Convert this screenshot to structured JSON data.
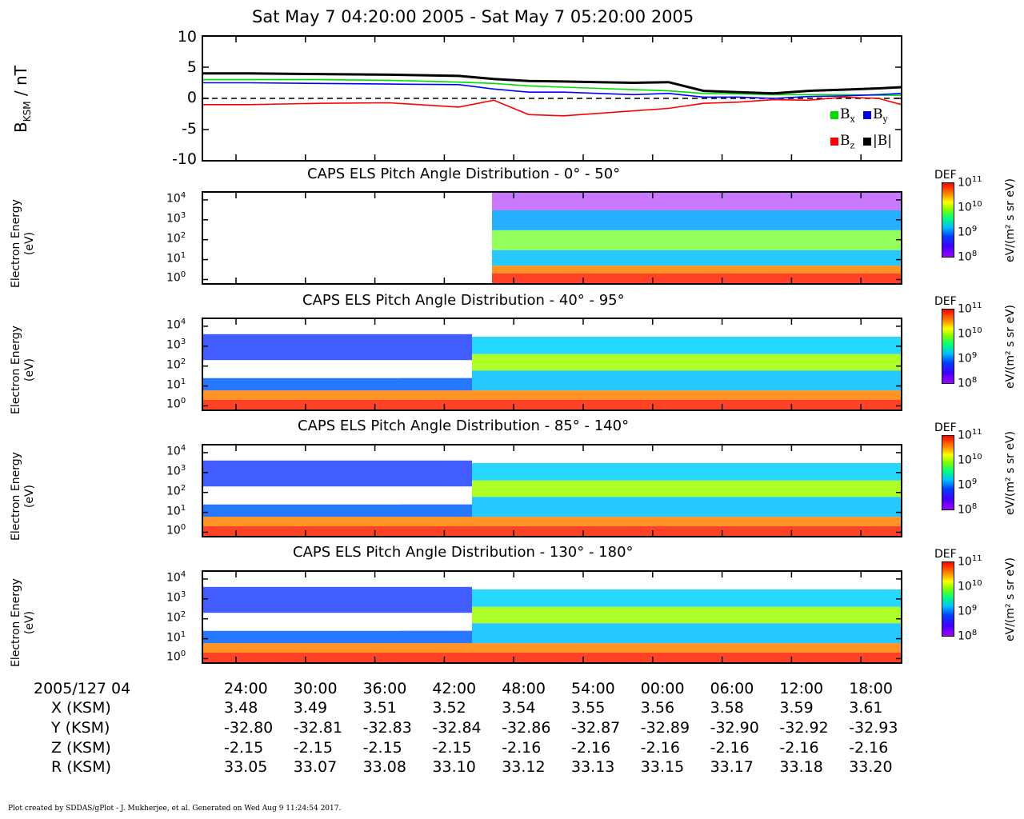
{
  "header": {
    "title": "Sat May 7 04:20:00 2005 - Sat May 7 05:20:00 2005"
  },
  "mag_panel": {
    "ylabel_main": "B",
    "ylabel_sub": "KSM",
    "ylabel_unit": " / nT",
    "yticks": [
      "10",
      "5",
      "0",
      "-5",
      "-10"
    ],
    "legend": [
      {
        "label": "B",
        "sub": "x",
        "color": "#00dd00"
      },
      {
        "label": "B",
        "sub": "y",
        "color": "#0000ff"
      },
      {
        "label": "B",
        "sub": "z",
        "color": "#ff0000"
      },
      {
        "label": "|B|",
        "sub": "",
        "color": "#000000"
      }
    ]
  },
  "spectrograms": [
    {
      "title": "CAPS ELS Pitch Angle Distribution - 0° - 50°",
      "ylabel1": "Electron Energy",
      "ylabel2": "(eV)"
    },
    {
      "title": "CAPS ELS Pitch Angle Distribution - 40° - 95°",
      "ylabel1": "Electron Energy",
      "ylabel2": "(eV)"
    },
    {
      "title": "CAPS ELS Pitch Angle Distribution - 85° - 140°",
      "ylabel1": "Electron Energy",
      "ylabel2": "(eV)"
    },
    {
      "title": "CAPS ELS Pitch Angle Distribution - 130° - 180°",
      "ylabel1": "Electron Energy",
      "ylabel2": "(eV)"
    }
  ],
  "energy_ticks": [
    {
      "base": "10",
      "exp": "4"
    },
    {
      "base": "10",
      "exp": "3"
    },
    {
      "base": "10",
      "exp": "2"
    },
    {
      "base": "10",
      "exp": "1"
    },
    {
      "base": "10",
      "exp": "0"
    }
  ],
  "colorbar": {
    "label": "DEF",
    "unit": "eV/(m² s sr eV)",
    "ticks": [
      {
        "base": "10",
        "exp": "11"
      },
      {
        "base": "10",
        "exp": "10"
      },
      {
        "base": "10",
        "exp": "9"
      },
      {
        "base": "10",
        "exp": "8"
      }
    ]
  },
  "ephemeris": {
    "start_label": "2005/127 04",
    "row_labels": [
      "X (KSM)",
      "Y (KSM)",
      "Z (KSM)",
      "R (KSM)"
    ],
    "times": [
      "24:00",
      "30:00",
      "36:00",
      "42:00",
      "48:00",
      "54:00",
      "00:00",
      "06:00",
      "12:00",
      "18:00"
    ],
    "X": [
      "3.48",
      "3.49",
      "3.51",
      "3.52",
      "3.54",
      "3.55",
      "3.56",
      "3.58",
      "3.59",
      "3.61"
    ],
    "Y": [
      "-32.80",
      "-32.81",
      "-32.83",
      "-32.84",
      "-32.86",
      "-32.87",
      "-32.89",
      "-32.90",
      "-32.92",
      "-32.93"
    ],
    "Z": [
      "-2.15",
      "-2.15",
      "-2.15",
      "-2.15",
      "-2.16",
      "-2.16",
      "-2.16",
      "-2.16",
      "-2.16",
      "-2.16"
    ],
    "R": [
      "33.05",
      "33.07",
      "33.08",
      "33.10",
      "33.12",
      "33.13",
      "33.15",
      "33.17",
      "33.18",
      "33.20"
    ]
  },
  "footer": "Plot created by SDDAS/gPlot - J. Mukherjee, et al.  Generated on Wed Aug 9 11:24:54 2017.",
  "chart_data": [
    {
      "type": "line",
      "title": "Sat May 7 04:20:00 2005 - Sat May 7 05:20:00 2005",
      "xlabel": "",
      "ylabel": "BKSM / nT",
      "ylim": [
        -10,
        10
      ],
      "x": [
        "04:20",
        "04:24",
        "04:30",
        "04:36",
        "04:42",
        "04:45",
        "04:48",
        "04:51",
        "04:54",
        "04:57",
        "05:00",
        "05:03",
        "05:06",
        "05:09",
        "05:12",
        "05:15",
        "05:18",
        "05:20"
      ],
      "series": [
        {
          "name": "Bx",
          "values": [
            3.0,
            3.0,
            3.0,
            2.9,
            2.6,
            2.4,
            2.0,
            1.8,
            1.6,
            1.4,
            1.2,
            0.8,
            0.7,
            0.6,
            0.6,
            0.6,
            0.5,
            0.5
          ]
        },
        {
          "name": "By",
          "values": [
            2.5,
            2.5,
            2.4,
            2.3,
            2.2,
            1.5,
            1.0,
            1.0,
            0.8,
            0.6,
            0.8,
            0.2,
            0.2,
            0.0,
            0.3,
            0.4,
            0.6,
            0.8
          ]
        },
        {
          "name": "Bz",
          "values": [
            -1.0,
            -1.0,
            -0.8,
            -0.7,
            -1.4,
            -0.3,
            -2.6,
            -2.8,
            -2.4,
            -2.0,
            -1.6,
            -0.8,
            -0.6,
            -0.2,
            -0.3,
            0.2,
            0.0,
            -1.0
          ]
        },
        {
          "name": "|B|",
          "values": [
            4.0,
            4.0,
            3.9,
            3.8,
            3.6,
            3.1,
            2.8,
            2.7,
            2.6,
            2.5,
            2.6,
            1.2,
            1.0,
            0.8,
            1.2,
            1.4,
            1.6,
            1.8
          ]
        }
      ]
    },
    {
      "type": "heatmap",
      "title": "CAPS ELS Pitch Angle Distribution - 0° - 50°",
      "ylabel": "Electron Energy (eV)",
      "ylim": [
        0.6,
        25000
      ],
      "colorbar_range": [
        100000000.0,
        100000000000.0
      ],
      "colorbar_label": "DEF eV/(m² s sr eV)"
    },
    {
      "type": "heatmap",
      "title": "CAPS ELS Pitch Angle Distribution - 40° - 95°",
      "ylabel": "Electron Energy (eV)",
      "ylim": [
        0.6,
        25000
      ],
      "colorbar_range": [
        100000000.0,
        100000000000.0
      ],
      "colorbar_label": "DEF eV/(m² s sr eV)"
    },
    {
      "type": "heatmap",
      "title": "CAPS ELS Pitch Angle Distribution - 85° - 140°",
      "ylabel": "Electron Energy (eV)",
      "ylim": [
        0.6,
        25000
      ],
      "colorbar_range": [
        100000000.0,
        100000000000.0
      ],
      "colorbar_label": "DEF eV/(m² s sr eV)"
    },
    {
      "type": "heatmap",
      "title": "CAPS ELS Pitch Angle Distribution - 130° - 180°",
      "ylabel": "Electron Energy (eV)",
      "ylim": [
        0.6,
        25000
      ],
      "colorbar_range": [
        100000000.0,
        100000000000.0
      ],
      "colorbar_label": "DEF eV/(m² s sr eV)"
    }
  ]
}
